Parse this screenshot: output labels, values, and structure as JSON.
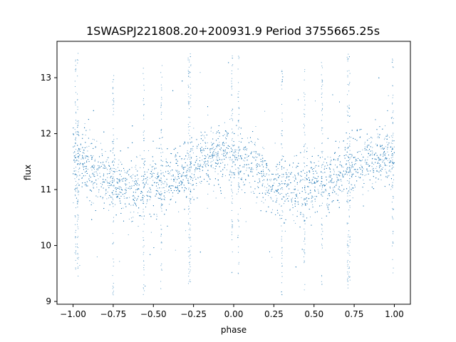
{
  "chart_data": {
    "type": "scatter",
    "title": "1SWASPJ221808.20+200931.9 Period 3755665.25s",
    "xlabel": "phase",
    "ylabel": "flux",
    "xlim": [
      -1.1,
      1.1
    ],
    "ylim": [
      8.95,
      13.65
    ],
    "x_ticks": [
      -1.0,
      -0.75,
      -0.5,
      -0.25,
      0.0,
      0.25,
      0.5,
      0.75,
      1.0
    ],
    "x_tick_labels": [
      "−1.00",
      "−0.75",
      "−0.50",
      "−0.25",
      "0.00",
      "0.25",
      "0.50",
      "0.75",
      "1.00"
    ],
    "y_ticks": [
      9,
      10,
      11,
      12,
      13
    ],
    "y_tick_labels": [
      "9",
      "10",
      "11",
      "12",
      "13"
    ],
    "grid": false,
    "point_color": "#1f77b4",
    "profile": {
      "phase": [
        -1.0,
        -0.9,
        -0.8,
        -0.7,
        -0.6,
        -0.5,
        -0.4,
        -0.3,
        -0.2,
        -0.1,
        0.0,
        0.1,
        0.2,
        0.3,
        0.4,
        0.5,
        0.6,
        0.7,
        0.8,
        0.9,
        1.0
      ],
      "flux": [
        11.6,
        11.45,
        11.2,
        11.05,
        11.05,
        11.15,
        11.2,
        11.3,
        11.55,
        11.6,
        11.6,
        11.45,
        11.2,
        11.05,
        11.05,
        11.15,
        11.2,
        11.3,
        11.55,
        11.6,
        11.6
      ]
    },
    "scatter_sigma": 0.28,
    "n_points": 6000,
    "flare_columns": [
      -0.985,
      -0.97,
      -0.75,
      -0.56,
      -0.45,
      -0.28,
      -0.27,
      -0.01,
      0.03,
      0.3,
      0.44,
      0.55,
      0.71,
      0.72,
      0.99
    ]
  }
}
